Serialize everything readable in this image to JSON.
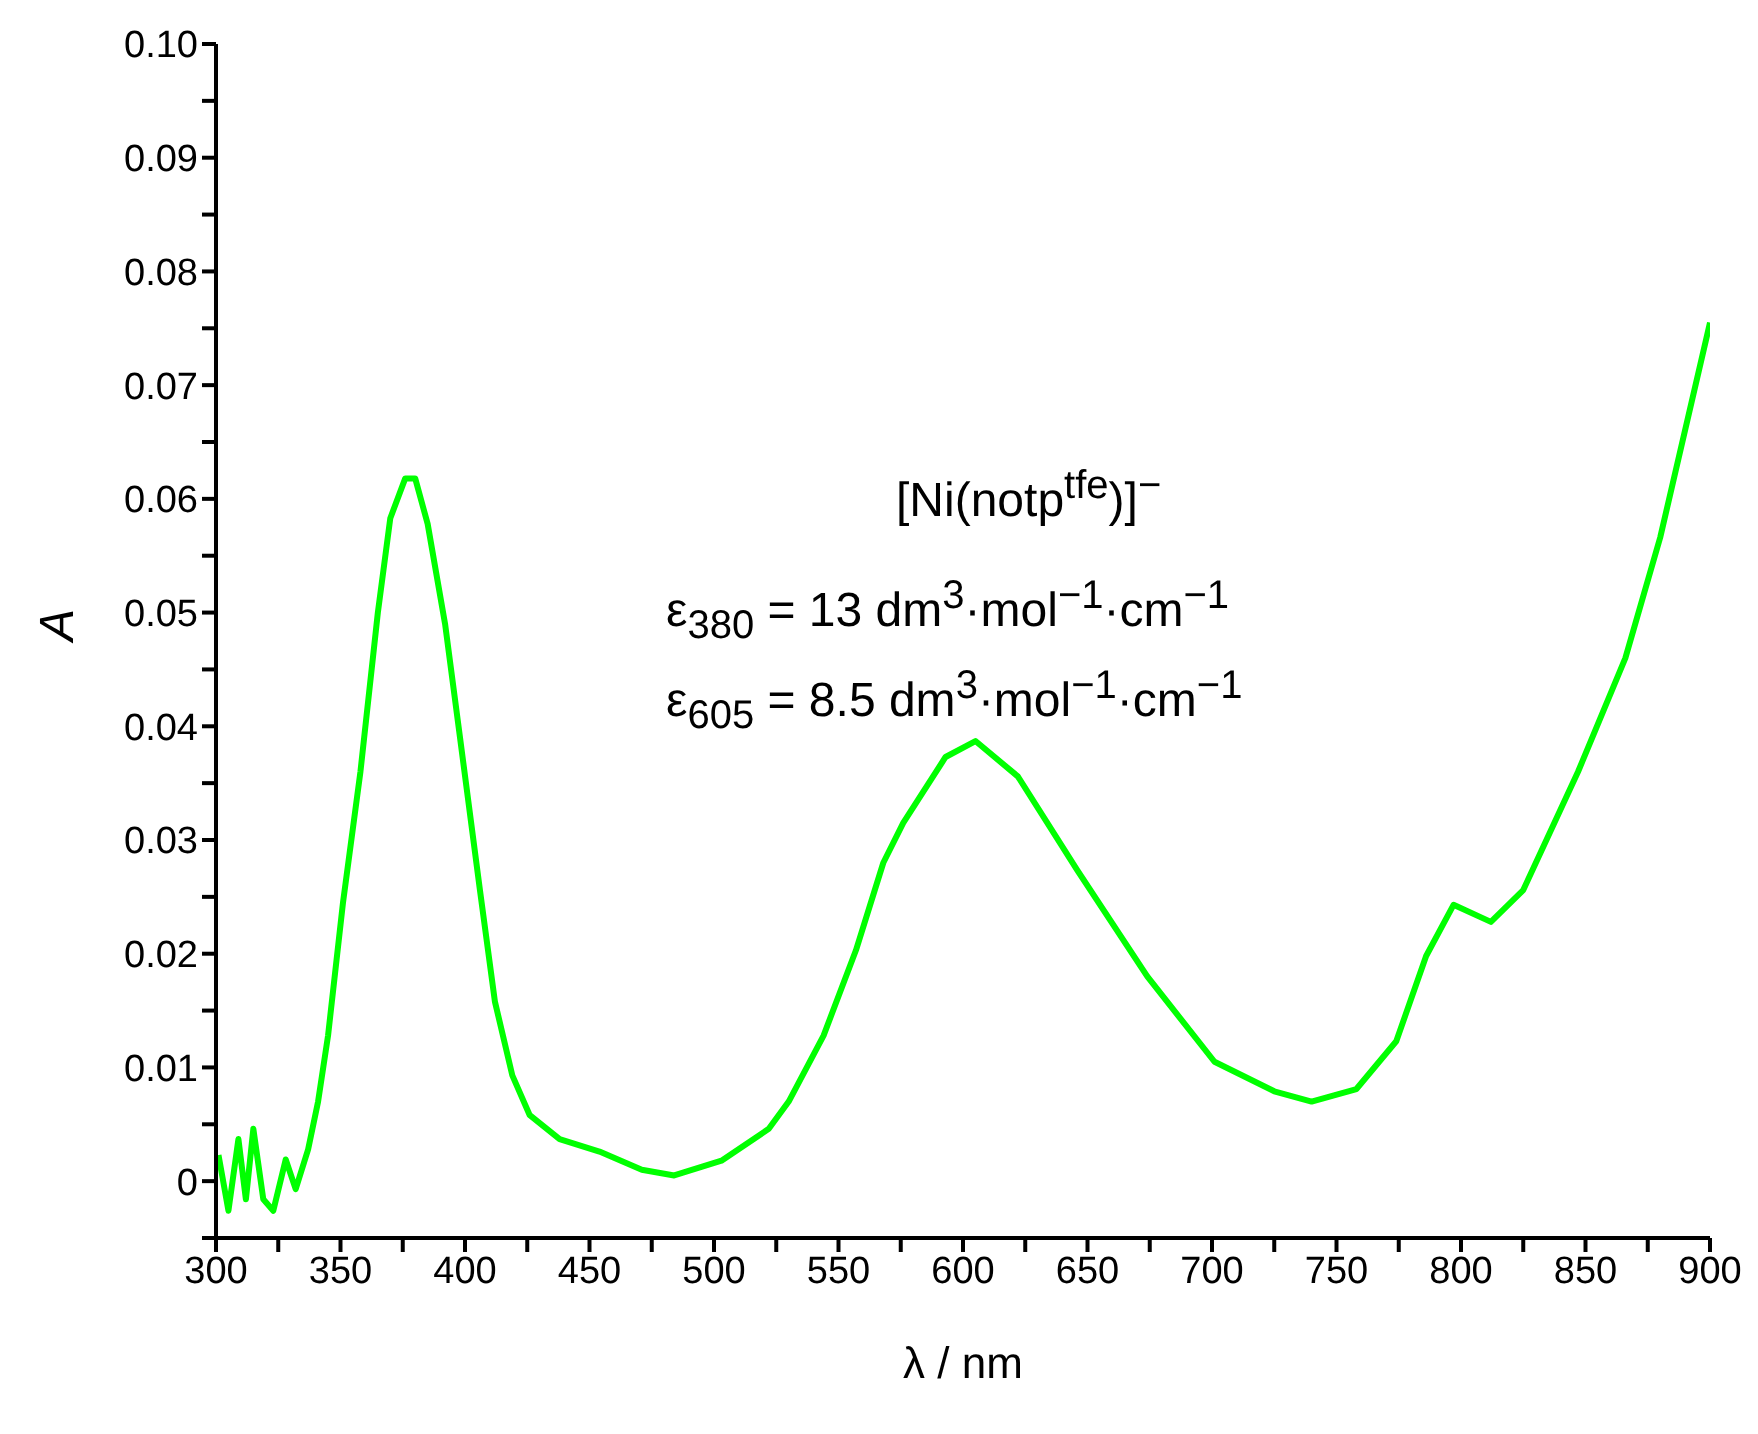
{
  "chart_data": {
    "type": "line",
    "xlabel": "λ / nm",
    "ylabel": "A",
    "annotations": [
      "[Ni(notp$^{tfe}$)]$^{−}$",
      "ε$_{380}$ = 13 dm$^{3}$·mol$^{−1}$·cm$^{−1}$",
      "ε$_{605}$ = 8.5 dm$^{3}$·mol$^{−1}$·cm$^{−1}$"
    ],
    "series": [
      {
        "color": "#00ff00",
        "x": [
          301,
          305,
          309,
          312,
          315,
          319,
          323,
          328,
          332,
          337,
          341,
          345,
          351,
          358,
          365,
          370,
          376,
          380,
          385,
          392,
          398,
          406,
          412,
          419,
          426,
          438,
          454,
          471,
          484,
          503,
          522,
          530,
          544,
          557,
          568,
          576,
          593,
          605,
          622,
          646,
          674,
          701,
          725,
          740,
          758,
          774,
          786,
          797,
          812,
          825,
          847,
          866,
          880,
          900
        ],
        "values": [
          0.0023,
          -0.0026,
          0.0037,
          -0.0016,
          0.0046,
          -0.0016,
          -0.0026,
          0.0019,
          -0.0007,
          0.0028,
          0.007,
          0.0128,
          0.0245,
          0.036,
          0.05,
          0.0583,
          0.0618,
          0.0618,
          0.0578,
          0.049,
          0.039,
          0.0256,
          0.0158,
          0.0093,
          0.0058,
          0.0037,
          0.0026,
          0.001,
          0.0005,
          0.0018,
          0.0046,
          0.007,
          0.0128,
          0.0203,
          0.028,
          0.0315,
          0.0373,
          0.0387,
          0.0356,
          0.0273,
          0.018,
          0.0105,
          0.0079,
          0.007,
          0.0081,
          0.0123,
          0.0198,
          0.0243,
          0.0228,
          0.0256,
          0.036,
          0.046,
          0.0566,
          0.0755
        ]
      }
    ],
    "xlim": [
      300,
      900
    ],
    "xticks": [
      300,
      {
        "value": 325,
        "label": null
      },
      350,
      {
        "value": 375,
        "label": null
      },
      400,
      {
        "value": 425,
        "label": null
      },
      450,
      {
        "value": 475,
        "label": null
      },
      500,
      {
        "value": 525,
        "label": null
      },
      550,
      {
        "value": 575,
        "label": null
      },
      600,
      {
        "value": 625,
        "label": null
      },
      650,
      {
        "value": 675,
        "label": null
      },
      700,
      {
        "value": 725,
        "label": null
      },
      750,
      {
        "value": 775,
        "label": null
      },
      800,
      {
        "value": 825,
        "label": null
      },
      850,
      {
        "value": 875,
        "label": null
      },
      900
    ],
    "ylim": [
      -0.005,
      0.1
    ],
    "yticks": [
      {
        "value": -0.005,
        "label": null
      },
      0,
      {
        "value": 0.005,
        "label": null
      },
      0.01,
      {
        "value": 0.015,
        "label": null
      },
      0.02,
      {
        "value": 0.025,
        "label": null
      },
      0.03,
      {
        "value": 0.035,
        "label": null
      },
      0.04,
      {
        "value": 0.045,
        "label": null
      },
      0.05,
      {
        "value": 0.055,
        "label": null
      },
      0.06,
      {
        "value": 0.065,
        "label": null
      },
      0.07,
      {
        "value": 0.075,
        "label": null
      },
      0.08,
      {
        "value": 0.085,
        "label": null
      },
      0.09,
      {
        "value": 0.095,
        "label": null
      },
      {
        "value": 0.1,
        "label": "0.10"
      }
    ],
    "grid": false,
    "legend": false,
    "marker": "none",
    "line_style": "solid"
  }
}
